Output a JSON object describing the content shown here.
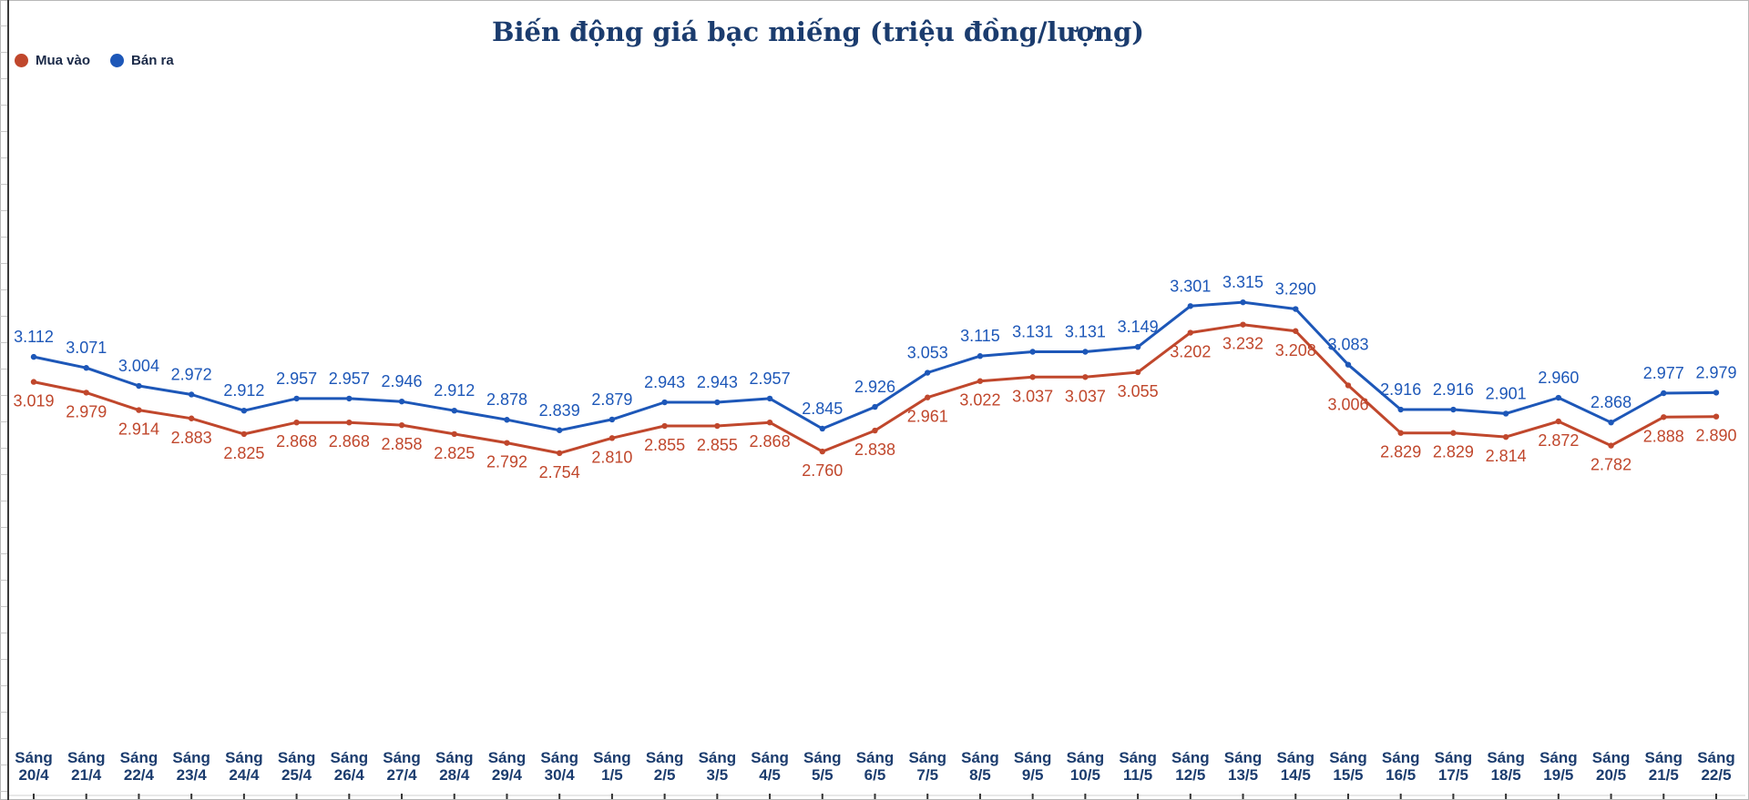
{
  "chart_data": {
    "type": "line",
    "title": "Biến động giá bạc miếng (triệu đồng/lượng)",
    "xlabel": "",
    "ylabel": "",
    "ylim": [
      2.2,
      3.75
    ],
    "grid": false,
    "legend_position": "top-left",
    "categories": [
      [
        "Sáng",
        "20/4"
      ],
      [
        "Sáng",
        "21/4"
      ],
      [
        "Sáng",
        "22/4"
      ],
      [
        "Sáng",
        "23/4"
      ],
      [
        "Sáng",
        "24/4"
      ],
      [
        "Sáng",
        "25/4"
      ],
      [
        "Sáng",
        "26/4"
      ],
      [
        "Sáng",
        "27/4"
      ],
      [
        "Sáng",
        "28/4"
      ],
      [
        "Sáng",
        "29/4"
      ],
      [
        "Sáng",
        "30/4"
      ],
      [
        "Sáng",
        "1/5"
      ],
      [
        "Sáng",
        "2/5"
      ],
      [
        "Sáng",
        "3/5"
      ],
      [
        "Sáng",
        "4/5"
      ],
      [
        "Sáng",
        "5/5"
      ],
      [
        "Sáng",
        "6/5"
      ],
      [
        "Sáng",
        "7/5"
      ],
      [
        "Sáng",
        "8/5"
      ],
      [
        "Sáng",
        "9/5"
      ],
      [
        "Sáng",
        "10/5"
      ],
      [
        "Sáng",
        "11/5"
      ],
      [
        "Sáng",
        "12/5"
      ],
      [
        "Sáng",
        "13/5"
      ],
      [
        "Sáng",
        "14/5"
      ],
      [
        "Sáng",
        "15/5"
      ],
      [
        "Sáng",
        "16/5"
      ],
      [
        "Sáng",
        "17/5"
      ],
      [
        "Sáng",
        "18/5"
      ],
      [
        "Sáng",
        "19/5"
      ],
      [
        "Sáng",
        "20/5"
      ],
      [
        "Sáng",
        "21/5"
      ],
      [
        "Sáng",
        "22/5"
      ]
    ],
    "series": [
      {
        "name": "Mua vào",
        "color": "#c0472c",
        "values": [
          3.019,
          2.979,
          2.914,
          2.883,
          2.825,
          2.868,
          2.868,
          2.858,
          2.825,
          2.792,
          2.754,
          2.81,
          2.855,
          2.855,
          2.868,
          2.76,
          2.838,
          2.961,
          3.022,
          3.037,
          3.037,
          3.055,
          3.202,
          3.232,
          3.208,
          3.006,
          2.829,
          2.829,
          2.814,
          2.872,
          2.782,
          2.888,
          2.89
        ],
        "labels": [
          "3.019",
          "2.979",
          "2.914",
          "2.883",
          "2.825",
          "2.868",
          "2.868",
          "2.858",
          "2.825",
          "2.792",
          "2.754",
          "2.810",
          "2.855",
          "2.855",
          "2.868",
          "2.760",
          "2.838",
          "2.961",
          "3.022",
          "3.037",
          "3.037",
          "3.055",
          "3.202",
          "3.232",
          "3.208",
          "3.006",
          "2.829",
          "2.829",
          "2.814",
          "2.872",
          "2.782",
          "2.888",
          "2.890"
        ]
      },
      {
        "name": "Bán ra",
        "color": "#1d57b8",
        "values": [
          3.112,
          3.071,
          3.004,
          2.972,
          2.912,
          2.957,
          2.957,
          2.946,
          2.912,
          2.878,
          2.839,
          2.879,
          2.943,
          2.943,
          2.957,
          2.845,
          2.926,
          3.053,
          3.115,
          3.131,
          3.131,
          3.149,
          3.301,
          3.315,
          3.29,
          3.083,
          2.916,
          2.916,
          2.901,
          2.96,
          2.868,
          2.977,
          2.979
        ],
        "labels": [
          "3.112",
          "3.071",
          "3.004",
          "2.972",
          "2.912",
          "2.957",
          "2.957",
          "2.946",
          "2.912",
          "2.878",
          "2.839",
          "2.879",
          "2.943",
          "2.943",
          "2.957",
          "2.845",
          "2.926",
          "3.053",
          "3.115",
          "3.131",
          "3.131",
          "3.149",
          "3.301",
          "3.315",
          "3.290",
          "3.083",
          "2.916",
          "2.916",
          "2.901",
          "2.960",
          "2.868",
          "2.977",
          "2.979"
        ]
      }
    ]
  }
}
